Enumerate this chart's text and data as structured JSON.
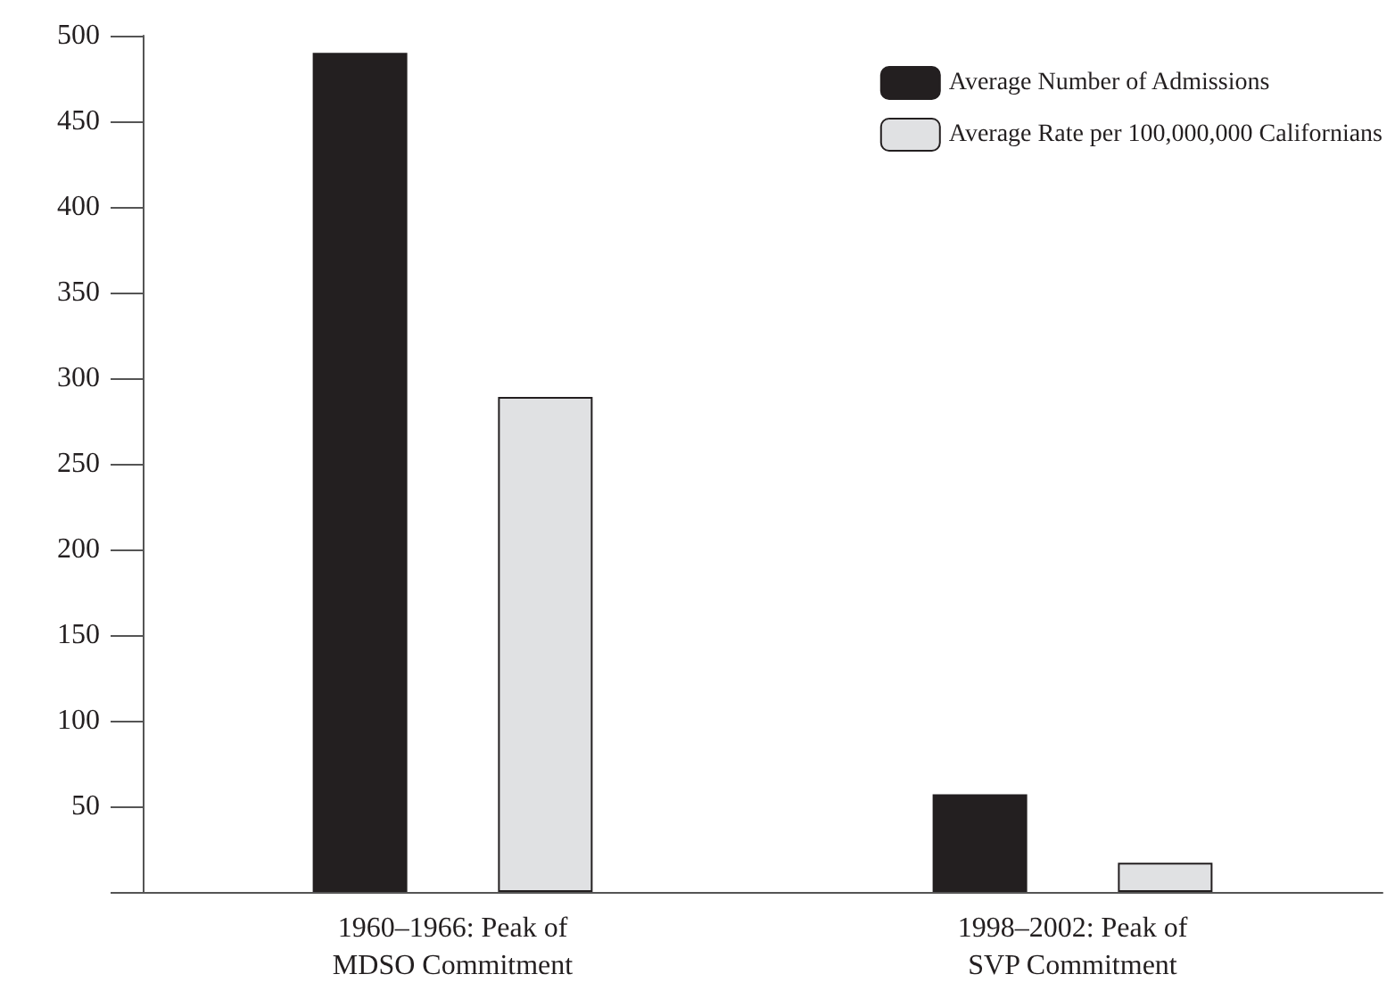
{
  "chart_data": {
    "type": "bar",
    "categories": [
      "1960–1966: Peak of\nMDSO Commitment",
      "1998–2002: Peak of\nSVP Commitment"
    ],
    "series": [
      {
        "name": "Average Number of Admissions",
        "color": "#231f20",
        "values": [
          490,
          57
        ]
      },
      {
        "name": "Average Rate per 100,000,000 Californians",
        "color": "#e0e1e3",
        "values": [
          289,
          17
        ]
      }
    ],
    "ylim": [
      0,
      500
    ],
    "yticks": [
      {
        "value": 0,
        "label": null
      },
      50,
      100,
      150,
      200,
      250,
      300,
      350,
      400,
      450,
      500
    ],
    "grid": false,
    "legend": "top right"
  }
}
